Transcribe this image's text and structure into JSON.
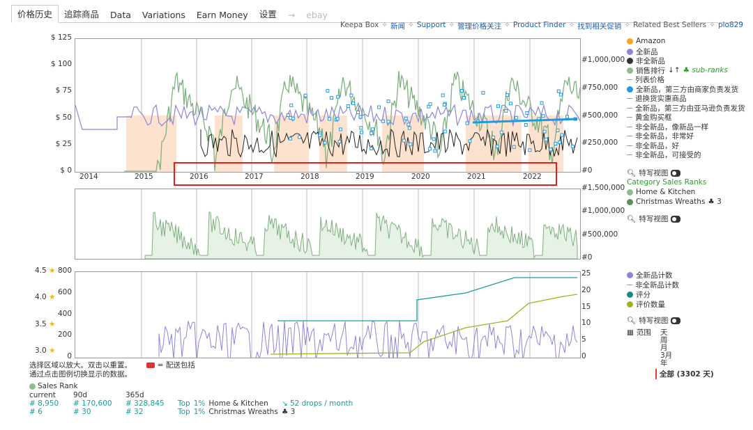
{
  "tabs": [
    "价格历史",
    "追踪商品",
    "Data",
    "Variations",
    "Earn Money",
    "设置",
    "→",
    "ebay"
  ],
  "sublinks": [
    "Keepa Box",
    "新闻",
    "Support",
    "管理价格关注",
    "Product Finder",
    "找到相关促销",
    "Related Best Sellers",
    "plo829"
  ],
  "main_chart": {
    "y_left": [
      "$ 125",
      "$ 100",
      "$ 75",
      "$ 50",
      "$ 25",
      "$ 0"
    ],
    "y_right": [
      "#1,000,000",
      "#750,000",
      "#500,000",
      "#250,000",
      "#0"
    ],
    "years": [
      "2014",
      "2015",
      "2016",
      "2017",
      "2018",
      "2019",
      "2020",
      "2021",
      "2022"
    ]
  },
  "legend_main": {
    "items": [
      {
        "label": "Amazon",
        "color": "#f5a623",
        "kind": "dot"
      },
      {
        "label": "全新品",
        "color": "#8b86d8",
        "kind": "dot"
      },
      {
        "label": "非全新品",
        "color": "#333333",
        "kind": "dot"
      },
      {
        "label": "销售排行",
        "color": "#8fbc8f",
        "kind": "dot"
      },
      {
        "label": "列表价格",
        "kind": "dash"
      },
      {
        "label": "全新品，第三方由商家负责发货",
        "color": "#1e9be0",
        "kind": "dot"
      },
      {
        "label": "退换货实惠商品",
        "kind": "dash"
      },
      {
        "label": "全新品，第三方由亚马逊负责发货",
        "kind": "dash"
      },
      {
        "label": "黄金购买框",
        "kind": "dash"
      },
      {
        "label": "非全新品，像新品一样",
        "kind": "dash"
      },
      {
        "label": "非全新品，非常好",
        "kind": "dash"
      },
      {
        "label": "非全新品，好",
        "kind": "dash"
      },
      {
        "label": "非全新品，可接受的",
        "kind": "dash"
      }
    ],
    "sub_ranks": "sub-ranks",
    "sort_icon": "↓↑",
    "zoom": "特写视图"
  },
  "rank_chart": {
    "y_right": [
      "#1,500,000",
      "#1,000,000",
      "#500,000",
      "#0"
    ],
    "legend_title": "Category Sales Ranks",
    "items": [
      {
        "label": "Home & Kitchen",
        "color": "#8fbc8f"
      },
      {
        "label": "Christmas Wreaths",
        "color": "#5a8f5a",
        "extra": "3"
      }
    ],
    "zoom": "特写视图"
  },
  "count_chart": {
    "stars": [
      "4.5",
      "4.0",
      "3.5",
      "3.0"
    ],
    "y_left": [
      "800",
      "600",
      "400",
      "200",
      "0"
    ],
    "y_right": [
      "25",
      "20",
      "15",
      "10",
      "5",
      "0"
    ],
    "legend": [
      {
        "label": "全新品计数",
        "color": "#8b86d8",
        "kind": "dot"
      },
      {
        "label": "非全新品计数",
        "kind": "dash"
      },
      {
        "label": "评分",
        "color": "#1a8a80",
        "kind": "dot"
      },
      {
        "label": "评价数量",
        "color": "#9ab520",
        "kind": "dot"
      }
    ],
    "zoom": "特写视图",
    "range_label": "范围",
    "range_options": [
      "天",
      "周",
      "月",
      "3月",
      "年"
    ],
    "range_selected": "全部 (3302 天)"
  },
  "footer": {
    "hint1": "选择区域以放大。双击以重置。",
    "hint2": "通过点击图例切换显示的数据。",
    "shipping": "= 配送包括",
    "sales_rank_title": "Sales Rank",
    "headers": [
      "current",
      "90d",
      "365d"
    ],
    "rows": [
      {
        "c": "# 8,950",
        "d90": "# 170,600",
        "d365": "# 328,845",
        "top": "Top",
        "pct": "1%",
        "cat": "Home & Kitchen",
        "extra": "52 drops / month"
      },
      {
        "c": "# 6",
        "d90": "# 30",
        "d365": "# 32",
        "top": "Top",
        "pct": "1%",
        "cat": "Christmas Wreaths",
        "extra": "3"
      }
    ]
  }
}
